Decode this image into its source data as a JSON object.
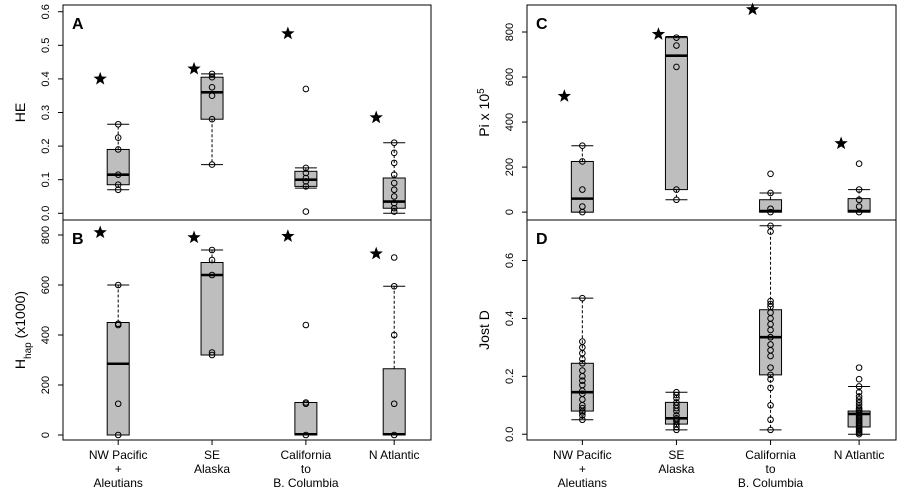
{
  "chart_data": [
    {
      "type": "box",
      "panel_label": "A",
      "ylabel": "HE",
      "ylim": [
        -0.02,
        0.62
      ],
      "yticks": [
        0,
        0.1,
        0.2,
        0.3,
        0.4,
        0.5,
        0.6
      ],
      "ytick_labels": [
        "0.0",
        "0.1",
        "0.2",
        "0.3",
        "0.4",
        "0.5",
        "0.6"
      ],
      "categories": [],
      "boxes": [
        {
          "q1": 0.085,
          "median": 0.115,
          "q3": 0.19,
          "whisker_low": 0.07,
          "whisker_high": 0.265,
          "points": [
            0.07,
            0.085,
            0.115,
            0.19,
            0.225,
            0.265
          ],
          "star": 0.4
        },
        {
          "q1": 0.28,
          "median": 0.36,
          "q3": 0.405,
          "whisker_low": 0.145,
          "whisker_high": 0.415,
          "points": [
            0.145,
            0.28,
            0.35,
            0.375,
            0.405,
            0.415
          ],
          "star": 0.43
        },
        {
          "q1": 0.08,
          "median": 0.1,
          "q3": 0.125,
          "whisker_low": 0.075,
          "whisker_high": 0.135,
          "points": [
            0.005,
            0.08,
            0.095,
            0.105,
            0.12,
            0.135,
            0.37
          ],
          "star": 0.535
        },
        {
          "q1": 0.015,
          "median": 0.035,
          "q3": 0.105,
          "whisker_low": 0.0,
          "whisker_high": 0.21,
          "points": [
            0.005,
            0.015,
            0.03,
            0.05,
            0.07,
            0.09,
            0.115,
            0.15,
            0.18,
            0.21
          ],
          "star": 0.285
        }
      ]
    },
    {
      "type": "box",
      "panel_label": "B",
      "ylabel": "Hhap (x1000)",
      "ylabel_main": "H",
      "ylabel_sub": "hap",
      "ylabel_rest": " (x1000)",
      "ylim": [
        -20,
        860
      ],
      "yticks": [
        0,
        200,
        400,
        600,
        800
      ],
      "ytick_labels": [
        "0",
        "200",
        "400",
        "600",
        "800"
      ],
      "categories": [
        "NW Pacific\n+\nAleutians",
        "SE\nAlaska",
        "California\nto\nB. Columbia",
        "N Atlantic"
      ],
      "boxes": [
        {
          "q1": 0,
          "median": 285,
          "q3": 450,
          "whisker_low": 0,
          "whisker_high": 600,
          "points": [
            0,
            125,
            440,
            445,
            600
          ],
          "star": 810
        },
        {
          "q1": 320,
          "median": 640,
          "q3": 690,
          "whisker_low": 320,
          "whisker_high": 740,
          "points": [
            320,
            330,
            640,
            700,
            740
          ],
          "star": 790
        },
        {
          "q1": 0,
          "median": 3,
          "q3": 130,
          "whisker_low": 0,
          "whisker_high": 130,
          "points": [
            0,
            125,
            130,
            440
          ],
          "star": 795
        },
        {
          "q1": 0,
          "median": 3,
          "q3": 265,
          "whisker_low": 0,
          "whisker_high": 595,
          "points": [
            0,
            125,
            400,
            595,
            710
          ],
          "star": 725
        }
      ]
    },
    {
      "type": "box",
      "panel_label": "C",
      "ylabel": "Pi x 105",
      "ylabel_main": "Pi x 10",
      "ylabel_sup": "5",
      "ylim": [
        -35,
        920
      ],
      "yticks": [
        0,
        200,
        400,
        600,
        800
      ],
      "ytick_labels": [
        "0",
        "200",
        "400",
        "600",
        "800"
      ],
      "categories": [],
      "boxes": [
        {
          "q1": 0,
          "median": 60,
          "q3": 225,
          "whisker_low": 0,
          "whisker_high": 295,
          "points": [
            0,
            25,
            100,
            225,
            295
          ],
          "star": 515
        },
        {
          "q1": 100,
          "median": 695,
          "q3": 775,
          "whisker_low": 55,
          "whisker_high": 780,
          "points": [
            55,
            100,
            645,
            740,
            775
          ],
          "star": 790
        },
        {
          "q1": 0,
          "median": 5,
          "q3": 55,
          "whisker_low": 0,
          "whisker_high": 85,
          "points": [
            0,
            15,
            85,
            170
          ],
          "star": 900
        },
        {
          "q1": 0,
          "median": 5,
          "q3": 60,
          "whisker_low": 0,
          "whisker_high": 100,
          "points": [
            0,
            25,
            55,
            100,
            215
          ],
          "star": 305
        }
      ]
    },
    {
      "type": "box",
      "panel_label": "D",
      "ylabel": "Jost D",
      "ylim": [
        -0.02,
        0.74
      ],
      "yticks": [
        0,
        0.2,
        0.4,
        0.6
      ],
      "ytick_labels": [
        "0.0",
        "0.2",
        "0.4",
        "0.6"
      ],
      "categories": [
        "NW Pacific\n+\nAleutians",
        "SE\nAlaska",
        "California\nto\nB. Columbia",
        "N Atlantic"
      ],
      "boxes": [
        {
          "q1": 0.08,
          "median": 0.145,
          "q3": 0.245,
          "whisker_low": 0.05,
          "whisker_high": 0.47,
          "points": [
            0.05,
            0.065,
            0.075,
            0.08,
            0.09,
            0.1,
            0.12,
            0.14,
            0.15,
            0.17,
            0.185,
            0.2,
            0.22,
            0.245,
            0.26,
            0.28,
            0.3,
            0.32,
            0.47
          ],
          "star": null
        },
        {
          "q1": 0.035,
          "median": 0.055,
          "q3": 0.11,
          "whisker_low": 0.015,
          "whisker_high": 0.145,
          "points": [
            0.015,
            0.025,
            0.035,
            0.045,
            0.05,
            0.055,
            0.065,
            0.08,
            0.09,
            0.1,
            0.11,
            0.125,
            0.135,
            0.145
          ],
          "star": null
        },
        {
          "q1": 0.205,
          "median": 0.335,
          "q3": 0.43,
          "whisker_low": 0.015,
          "whisker_high": 0.72,
          "points": [
            0.015,
            0.05,
            0.1,
            0.16,
            0.19,
            0.205,
            0.23,
            0.27,
            0.29,
            0.31,
            0.335,
            0.36,
            0.38,
            0.4,
            0.42,
            0.44,
            0.45,
            0.46,
            0.7,
            0.72
          ],
          "star": null
        },
        {
          "q1": 0.025,
          "median": 0.07,
          "q3": 0.08,
          "whisker_low": 0.0,
          "whisker_high": 0.165,
          "points": [
            0.0,
            0.005,
            0.01,
            0.015,
            0.02,
            0.025,
            0.03,
            0.035,
            0.04,
            0.045,
            0.05,
            0.055,
            0.06,
            0.065,
            0.07,
            0.075,
            0.08,
            0.085,
            0.09,
            0.1,
            0.11,
            0.12,
            0.13,
            0.145,
            0.165,
            0.19,
            0.23
          ],
          "star": null
        }
      ]
    }
  ]
}
